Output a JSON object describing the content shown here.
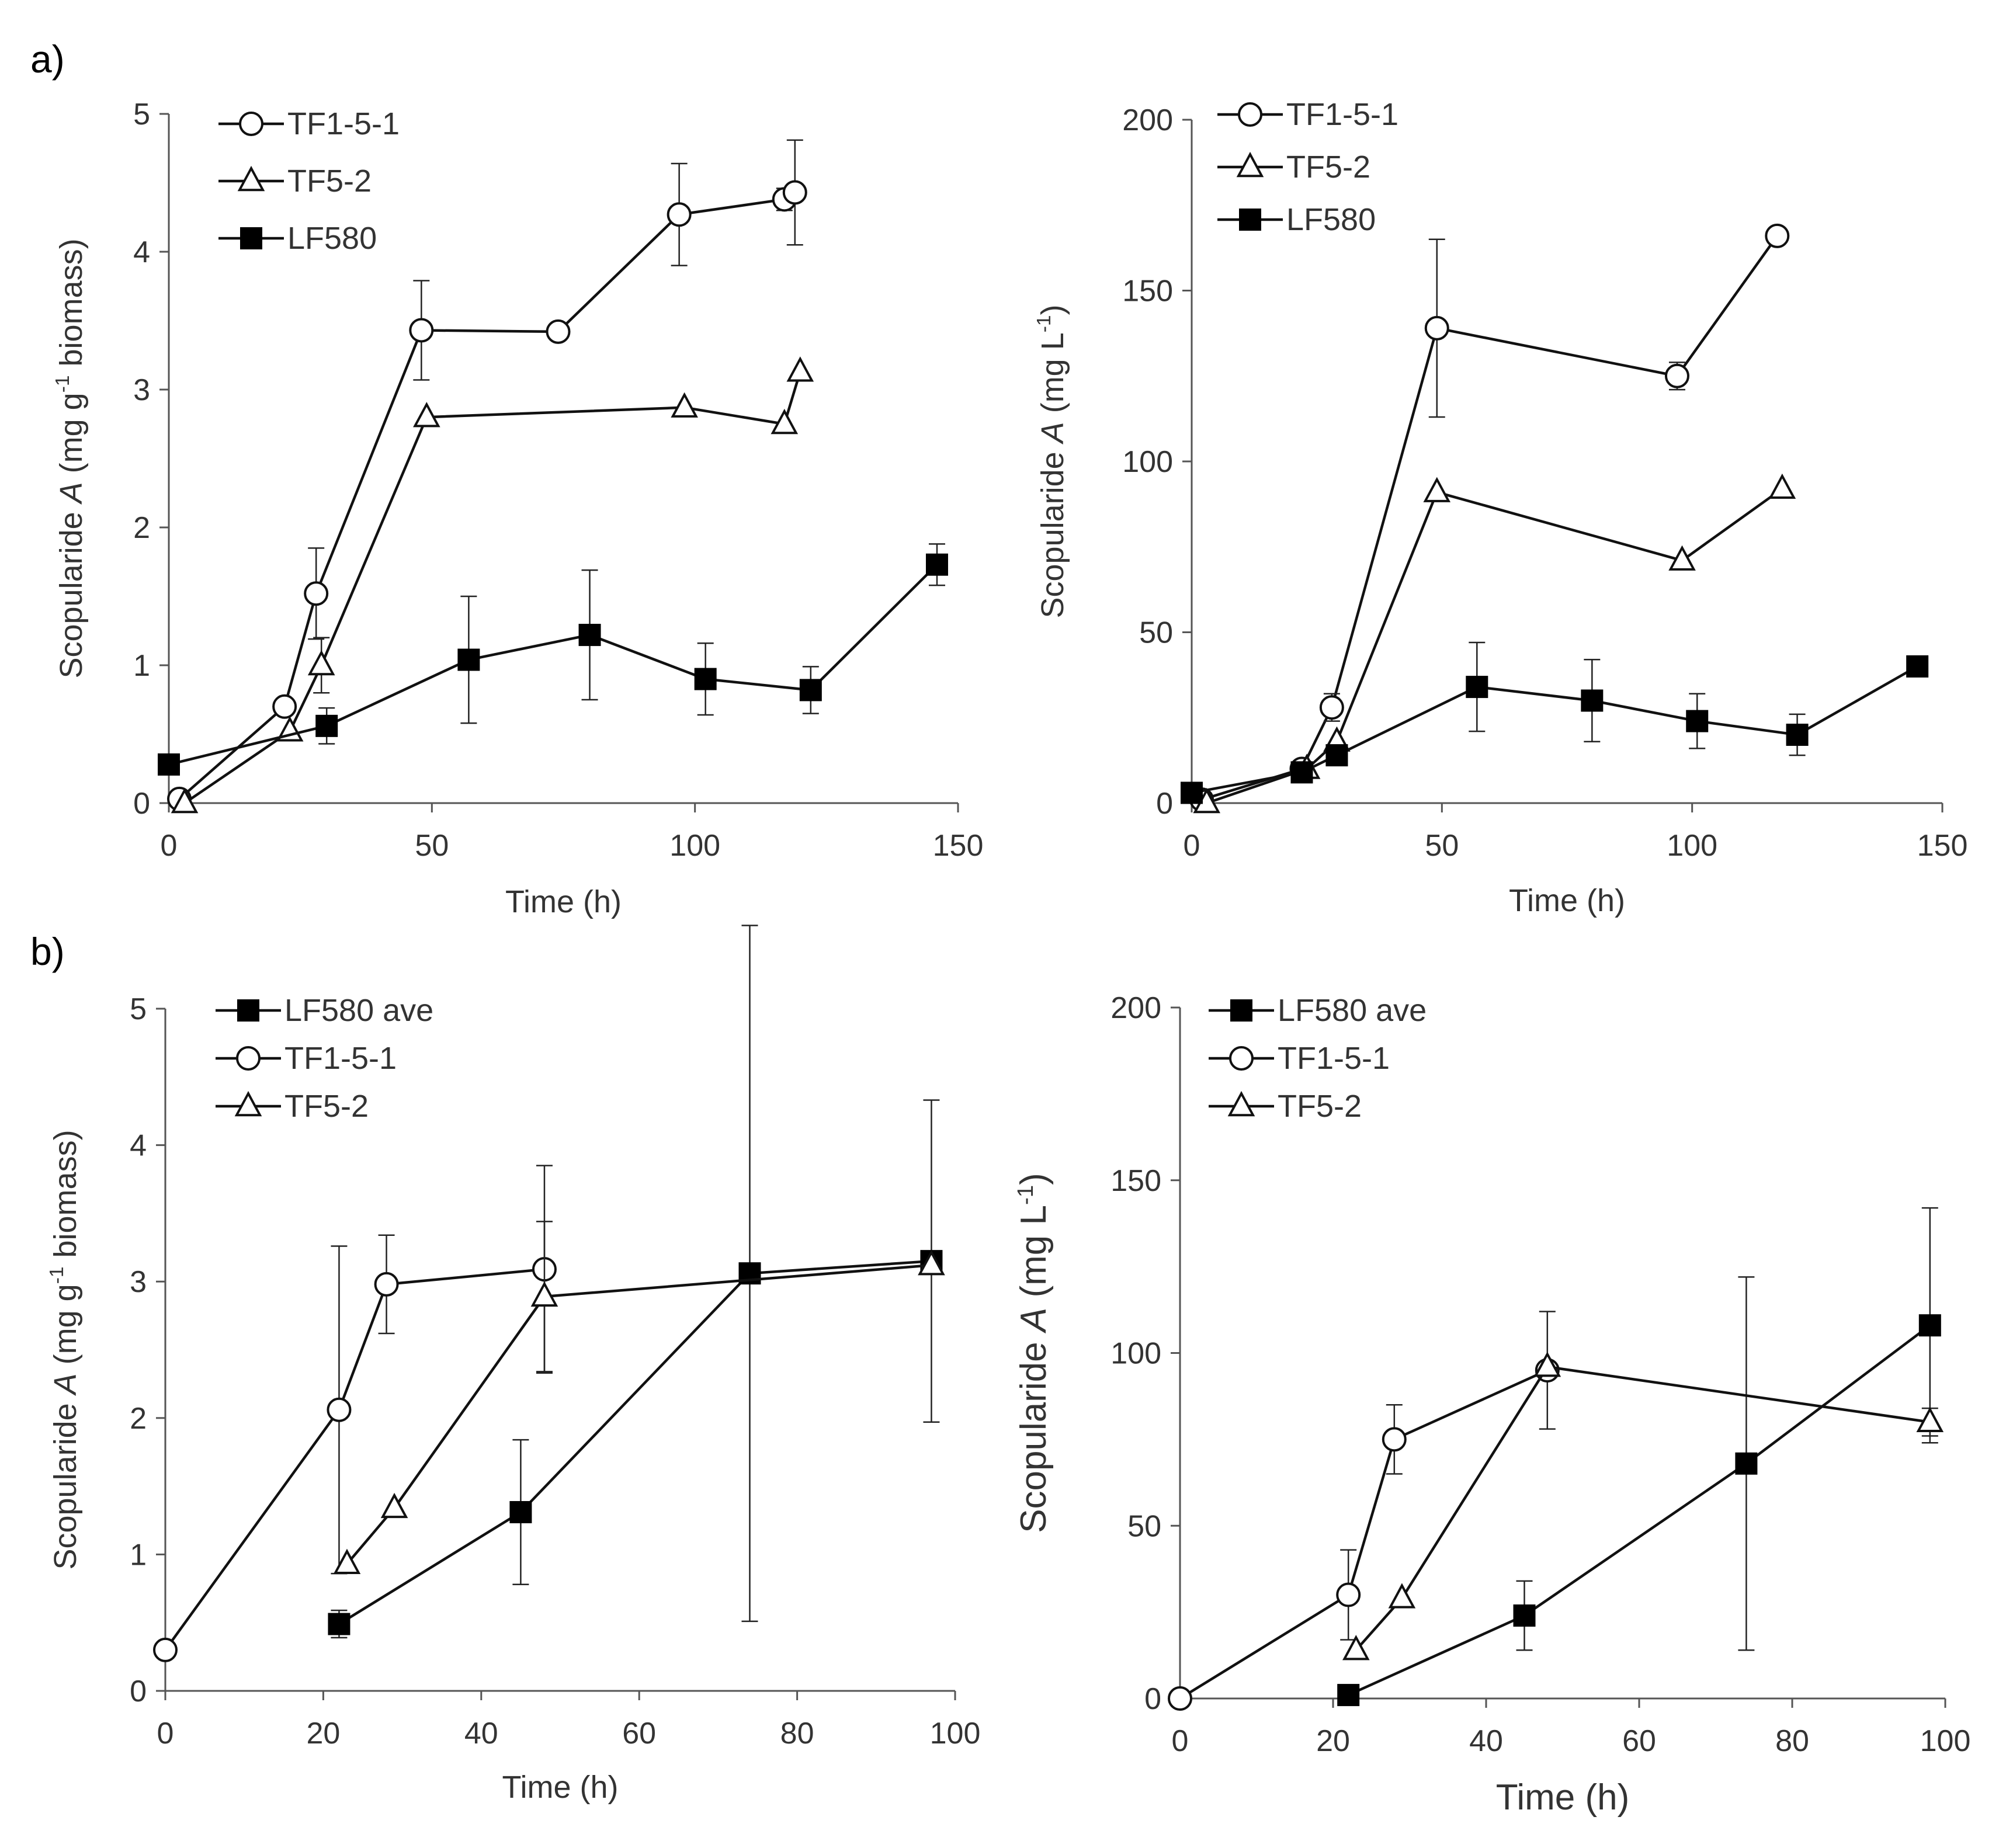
{
  "figure": {
    "panel_a_label": "a)",
    "panel_b_label": "b)"
  },
  "chart_data": [
    {
      "id": "a-left",
      "type": "line",
      "xlabel": "Time  (h)",
      "ylabel": {
        "before": "Scopularide ",
        "italic": "A",
        "mid": " (mg g",
        "sup": "-1",
        "after": " biomass)"
      },
      "xlim": [
        0,
        150
      ],
      "ylim": [
        0,
        5
      ],
      "xticks": [
        0,
        50,
        100,
        150
      ],
      "yticks": [
        0,
        1,
        2,
        3,
        4,
        5
      ],
      "legend": [
        "TF1-5-1",
        "TF5-2",
        "LF580"
      ],
      "series": [
        {
          "name": "TF1-5-1",
          "marker": "circle",
          "x": [
            2,
            22,
            28,
            48,
            74,
            97,
            117,
            119
          ],
          "y": [
            0.03,
            0.7,
            1.52,
            3.43,
            3.42,
            4.27,
            4.38,
            4.43
          ],
          "err": [
            0,
            0,
            0.33,
            0.36,
            0,
            0.37,
            0.08,
            0.38
          ]
        },
        {
          "name": "TF5-2",
          "marker": "triangle",
          "x": [
            3,
            23,
            29,
            49,
            98,
            117,
            120
          ],
          "y": [
            0,
            0.52,
            1.0,
            2.8,
            2.87,
            2.75,
            3.13
          ],
          "err": [
            0,
            0,
            0.2,
            0,
            0,
            0,
            0
          ]
        },
        {
          "name": "LF580",
          "marker": "square",
          "x": [
            0,
            30,
            57,
            80,
            102,
            122,
            146
          ],
          "y": [
            0.28,
            0.56,
            1.04,
            1.22,
            0.9,
            0.82,
            1.73
          ],
          "err": [
            0,
            0.13,
            0.46,
            0.47,
            0.26,
            0.17,
            0.15
          ]
        }
      ]
    },
    {
      "id": "a-right",
      "type": "line",
      "xlabel": "Time  (h)",
      "ylabel": {
        "before": "Scopularide ",
        "italic": "A",
        "mid": " (mg L",
        "sup": "-1",
        "after": ")"
      },
      "xlim": [
        0,
        150
      ],
      "ylim": [
        0,
        200
      ],
      "xticks": [
        0,
        50,
        100,
        150
      ],
      "yticks": [
        0,
        50,
        100,
        150,
        200
      ],
      "legend": [
        "TF1-5-1",
        "TF5-2",
        "LF580"
      ],
      "series": [
        {
          "name": "TF1-5-1",
          "marker": "circle",
          "x": [
            2,
            22,
            28,
            49,
            97,
            117
          ],
          "y": [
            1,
            10,
            28,
            139,
            125,
            166
          ],
          "err": [
            0,
            0,
            4,
            26,
            4,
            0
          ]
        },
        {
          "name": "TF5-2",
          "marker": "triangle",
          "x": [
            3,
            23,
            29,
            49,
            98,
            118
          ],
          "y": [
            0,
            10,
            18,
            91,
            71,
            92
          ],
          "err": [
            0,
            0,
            0,
            0,
            0,
            0
          ]
        },
        {
          "name": "LF580",
          "marker": "square",
          "x": [
            0,
            22,
            29,
            57,
            80,
            101,
            121,
            145
          ],
          "y": [
            3,
            9,
            14,
            34,
            30,
            24,
            20,
            40
          ],
          "err": [
            0,
            0,
            0,
            13,
            12,
            8,
            6,
            0
          ]
        }
      ]
    },
    {
      "id": "b-left",
      "type": "line",
      "xlabel": "Time  (h)",
      "ylabel": {
        "before": "Scopularide ",
        "italic": "A",
        "mid": " (mg g",
        "sup": "-1",
        "after": " biomass)"
      },
      "xlim": [
        0,
        100
      ],
      "ylim": [
        0,
        5
      ],
      "xticks": [
        0,
        20,
        40,
        60,
        80,
        100
      ],
      "yticks": [
        0,
        1,
        2,
        3,
        4,
        5
      ],
      "legend": [
        "LF580 ave",
        "TF1-5-1",
        "TF5-2"
      ],
      "series": [
        {
          "name": "LF580 ave",
          "marker": "square",
          "x": [
            22,
            45,
            74,
            97
          ],
          "y": [
            0.49,
            1.31,
            3.06,
            3.15
          ],
          "err": [
            0.1,
            0.53,
            2.55,
            1.18
          ]
        },
        {
          "name": "TF1-5-1",
          "marker": "circle",
          "x": [
            0,
            22,
            28,
            48
          ],
          "y": [
            0.3,
            2.06,
            2.98,
            3.09
          ],
          "err": [
            0,
            1.2,
            0.36,
            0.76
          ]
        },
        {
          "name": "TF5-2",
          "marker": "triangle",
          "x": [
            23,
            29,
            48,
            97
          ],
          "y": [
            0.93,
            1.34,
            2.89,
            3.12
          ],
          "err": [
            0,
            0,
            0.55,
            0
          ]
        }
      ]
    },
    {
      "id": "b-right",
      "type": "line",
      "xlabel": "Time (h)",
      "ylabel": {
        "before": "Scopularide ",
        "italic": "A",
        "mid": " (mg L",
        "sup": "-1",
        "after": ")"
      },
      "xlim": [
        0,
        100
      ],
      "ylim": [
        0,
        200
      ],
      "xticks": [
        0,
        20,
        40,
        60,
        80,
        100
      ],
      "yticks": [
        0,
        50,
        100,
        150,
        200
      ],
      "legend": [
        "LF580 ave",
        "TF1-5-1",
        "TF5-2"
      ],
      "series": [
        {
          "name": "LF580 ave",
          "marker": "square",
          "x": [
            22,
            45,
            74,
            98
          ],
          "y": [
            1,
            24,
            68,
            108
          ],
          "err": [
            0,
            10,
            54,
            34
          ]
        },
        {
          "name": "TF1-5-1",
          "marker": "circle",
          "x": [
            0,
            22,
            28,
            48
          ],
          "y": [
            0,
            30,
            75,
            95
          ],
          "err": [
            0,
            13,
            10,
            17
          ]
        },
        {
          "name": "TF5-2",
          "marker": "triangle",
          "x": [
            23,
            29,
            48,
            98
          ],
          "y": [
            14,
            29,
            96,
            80
          ],
          "err": [
            0,
            0,
            0,
            4
          ]
        }
      ]
    }
  ]
}
